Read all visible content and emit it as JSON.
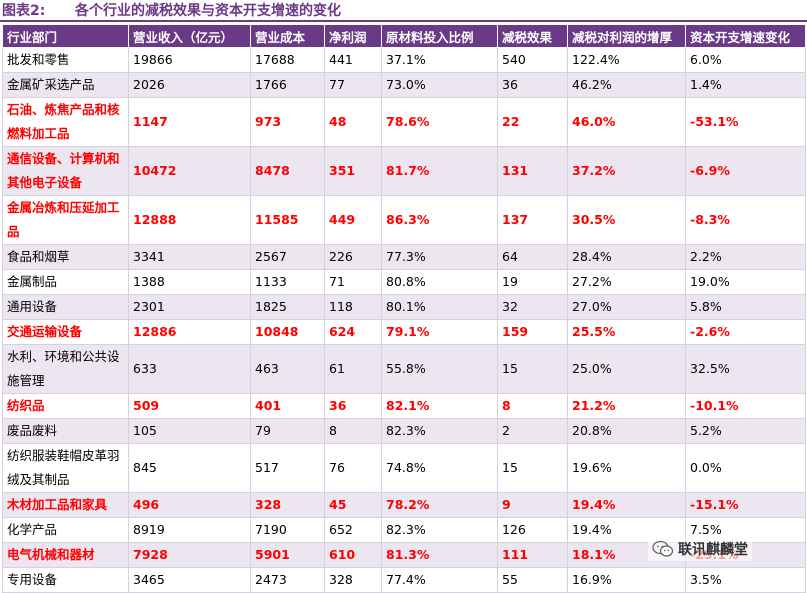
{
  "figure": {
    "label": "图表2:",
    "title": "各个行业的减税效果与资本开支增速的变化"
  },
  "columns": [
    "行业部门",
    "营业收入（亿元）",
    "营业成本",
    "净利润",
    "原材料投入比例",
    "减税效果",
    "减税对利润的增厚",
    "资本开支增速变化"
  ],
  "rows": [
    {
      "sector": "批发和零售",
      "revenue": "19866",
      "cost": "17688",
      "profit": "441",
      "material": "37.1%",
      "effect": "540",
      "boost": "122.4%",
      "capex": "6.0%",
      "highlight": false
    },
    {
      "sector": "金属矿采选产品",
      "revenue": "2026",
      "cost": "1766",
      "profit": "77",
      "material": "73.0%",
      "effect": "36",
      "boost": "46.2%",
      "capex": "1.4%",
      "highlight": false
    },
    {
      "sector": "石油、炼焦产品和核燃料加工品",
      "revenue": "1147",
      "cost": "973",
      "profit": "48",
      "material": "78.6%",
      "effect": "22",
      "boost": "46.0%",
      "capex": "-53.1%",
      "highlight": true
    },
    {
      "sector": "通信设备、计算机和其他电子设备",
      "revenue": "10472",
      "cost": "8478",
      "profit": "351",
      "material": "81.7%",
      "effect": "131",
      "boost": "37.2%",
      "capex": "-6.9%",
      "highlight": true
    },
    {
      "sector": "金属冶炼和压延加工品",
      "revenue": "12888",
      "cost": "11585",
      "profit": "449",
      "material": "86.3%",
      "effect": "137",
      "boost": "30.5%",
      "capex": "-8.3%",
      "highlight": true
    },
    {
      "sector": "食品和烟草",
      "revenue": "3341",
      "cost": "2567",
      "profit": "226",
      "material": "77.3%",
      "effect": "64",
      "boost": "28.4%",
      "capex": "2.2%",
      "highlight": false
    },
    {
      "sector": "金属制品",
      "revenue": "1388",
      "cost": "1133",
      "profit": "71",
      "material": "80.8%",
      "effect": "19",
      "boost": "27.2%",
      "capex": "19.0%",
      "highlight": false
    },
    {
      "sector": "通用设备",
      "revenue": "2301",
      "cost": "1825",
      "profit": "118",
      "material": "80.1%",
      "effect": "32",
      "boost": "27.0%",
      "capex": "5.8%",
      "highlight": false
    },
    {
      "sector": "交通运输设备",
      "revenue": "12886",
      "cost": "10848",
      "profit": "624",
      "material": "79.1%",
      "effect": "159",
      "boost": "25.5%",
      "capex": "-2.6%",
      "highlight": true
    },
    {
      "sector": "水利、环境和公共设施管理",
      "revenue": "633",
      "cost": "463",
      "profit": "61",
      "material": "55.8%",
      "effect": "15",
      "boost": "25.0%",
      "capex": "32.5%",
      "highlight": false
    },
    {
      "sector": "纺织品",
      "revenue": "509",
      "cost": "401",
      "profit": "36",
      "material": "82.1%",
      "effect": "8",
      "boost": "21.2%",
      "capex": "-10.1%",
      "highlight": true
    },
    {
      "sector": "废品废料",
      "revenue": "105",
      "cost": "79",
      "profit": "8",
      "material": "82.3%",
      "effect": "2",
      "boost": "20.8%",
      "capex": "5.2%",
      "highlight": false
    },
    {
      "sector": "纺织服装鞋帽皮革羽绒及其制品",
      "revenue": "845",
      "cost": "517",
      "profit": "76",
      "material": "74.8%",
      "effect": "15",
      "boost": "19.6%",
      "capex": "0.0%",
      "highlight": false
    },
    {
      "sector": "木材加工品和家具",
      "revenue": "496",
      "cost": "328",
      "profit": "45",
      "material": "78.2%",
      "effect": "9",
      "boost": "19.4%",
      "capex": "-15.1%",
      "highlight": true
    },
    {
      "sector": "化学产品",
      "revenue": "8919",
      "cost": "7190",
      "profit": "652",
      "material": "82.3%",
      "effect": "126",
      "boost": "19.4%",
      "capex": "7.5%",
      "highlight": false
    },
    {
      "sector": "电气机械和器材",
      "revenue": "7928",
      "cost": "5901",
      "profit": "610",
      "material": "81.3%",
      "effect": "111",
      "boost": "18.1%",
      "capex": "-23.1%",
      "highlight": true
    },
    {
      "sector": "专用设备",
      "revenue": "3465",
      "cost": "2473",
      "profit": "328",
      "material": "77.4%",
      "effect": "55",
      "boost": "16.9%",
      "capex": "3.5%",
      "highlight": false
    }
  ],
  "watermark": {
    "text": "联讯麒麟堂",
    "icon": "wechat-icon"
  }
}
